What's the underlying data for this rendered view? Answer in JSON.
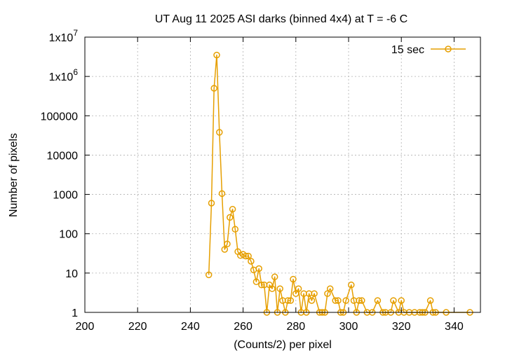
{
  "chart_data": {
    "type": "line",
    "title": "UT Aug 11 2025 ASI darks (binned 4x4) at T = -6 C",
    "xlabel": "(Counts/2) per pixel",
    "ylabel": "Number of pixels",
    "xlim": [
      200,
      350
    ],
    "ylim": [
      1,
      10000000
    ],
    "yscale": "log",
    "grid": true,
    "legend_position": "top-right",
    "x_ticks": [
      200,
      220,
      240,
      260,
      280,
      300,
      320,
      340
    ],
    "x_tick_labels": [
      "200",
      "220",
      "240",
      "260",
      "280",
      "300",
      "320",
      "340"
    ],
    "y_ticks": [
      1,
      10,
      100,
      1000,
      10000,
      100000,
      1000000,
      10000000
    ],
    "y_tick_labels": [
      {
        "base": "1",
        "sup": ""
      },
      {
        "base": "10",
        "sup": ""
      },
      {
        "base": "100",
        "sup": ""
      },
      {
        "base": "1000",
        "sup": ""
      },
      {
        "base": "10000",
        "sup": ""
      },
      {
        "base": "100000",
        "sup": ""
      },
      {
        "base": "1x10",
        "sup": "6"
      },
      {
        "base": "1x10",
        "sup": "7"
      }
    ],
    "series": [
      {
        "name": "15 sec",
        "color": "#e69f00",
        "marker": "open-circle",
        "x": [
          247,
          248,
          249,
          250,
          251,
          252,
          253,
          254,
          255,
          256,
          257,
          258,
          259,
          260,
          261,
          262,
          263,
          264,
          265,
          266,
          267,
          268,
          269,
          270,
          271,
          272,
          273,
          274,
          275,
          276,
          277,
          278,
          279,
          280,
          281,
          282,
          283,
          284,
          285,
          286,
          287,
          289,
          290,
          291,
          292,
          293,
          295,
          296,
          297,
          298,
          299,
          301,
          302,
          303,
          304,
          305,
          307,
          309,
          311,
          313,
          314,
          316,
          317,
          319,
          320,
          321,
          323,
          325,
          327,
          328,
          329,
          331,
          332,
          333,
          337,
          346
        ],
        "y": [
          9,
          600,
          500000,
          3500000,
          38000,
          1050,
          40,
          55,
          260,
          420,
          130,
          35,
          28,
          30,
          27,
          27,
          20,
          12,
          6,
          13,
          5,
          5,
          1,
          5,
          4,
          8,
          1,
          4,
          2,
          1,
          2,
          2,
          7,
          3,
          4,
          1,
          3,
          1,
          3,
          2,
          3,
          1,
          1,
          1,
          3,
          4,
          2,
          2,
          1,
          1,
          2,
          5,
          2,
          1,
          2,
          2,
          1,
          1,
          2,
          1,
          1,
          1,
          2,
          1,
          2,
          1,
          1,
          1,
          1,
          1,
          1,
          2,
          1,
          1,
          1,
          1
        ]
      }
    ]
  }
}
